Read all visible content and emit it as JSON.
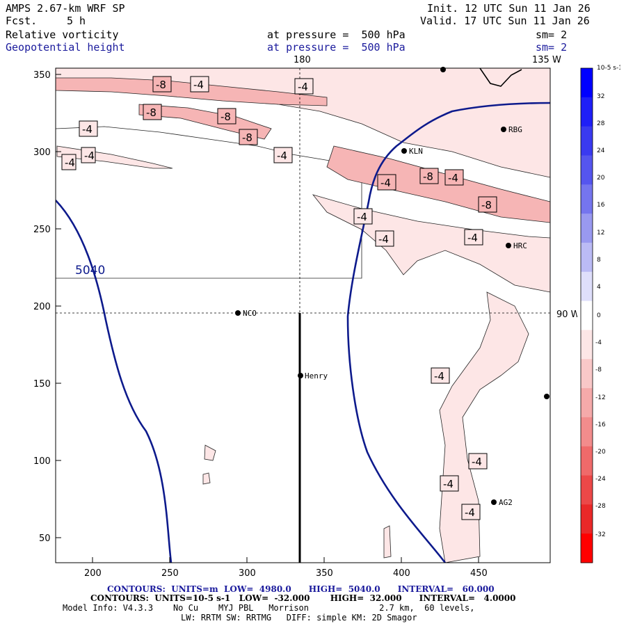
{
  "header": {
    "model": "AMPS 2.67-km WRF SP",
    "fcst_label": "Fcst.",
    "fcst_value": "5 h",
    "init": "Init. 12 UTC Sun 11 Jan 26",
    "valid": "Valid. 17 UTC Sun 11 Jan 26",
    "field1": "Relative vorticity",
    "field1_level": "at pressure =  500 hPa",
    "field1_sm": "sm= 2",
    "field2": "Geopotential height",
    "field2_level": "at pressure =  500 hPa",
    "field2_sm": "sm= 2"
  },
  "map": {
    "x_ticks": [
      "200",
      "250",
      "300",
      "350",
      "400",
      "450"
    ],
    "y_ticks": [
      "350",
      "300",
      "250",
      "200",
      "150",
      "100",
      "50"
    ],
    "lon_labels": {
      "top_180": "180",
      "top_135w": "135 W",
      "right_90w": "90 W"
    },
    "height_label": "5040",
    "stations": [
      {
        "name": "NCO"
      },
      {
        "name": "Henry"
      },
      {
        "name": "KLN"
      },
      {
        "name": "RBG"
      },
      {
        "name": "HRC"
      },
      {
        "name": "AG2"
      },
      {
        "name": ""
      },
      {
        "name": ""
      }
    ],
    "contour_labels": [
      "-8",
      "-4",
      "-4",
      "-8",
      "-8",
      "-8",
      "-4",
      "-4",
      "-4",
      "-4",
      "-4",
      "-8",
      "-4",
      "-8",
      "-4",
      "-4",
      "-4",
      "-4",
      "-4",
      "-4",
      "-4"
    ],
    "colors": {
      "height_contour": "#0d1a8c",
      "vort_light": "#fde6e6",
      "vort_mid": "#f6b5b5"
    }
  },
  "colorbar": {
    "unit": "10-5 s-1",
    "labels": [
      "32",
      "28",
      "24",
      "20",
      "16",
      "12",
      "8",
      "4",
      "0",
      "-4",
      "-8",
      "-12",
      "-16",
      "-20",
      "-24",
      "-28",
      "-32"
    ],
    "colors": [
      "#0000ff",
      "#1f1ff7",
      "#3a3af0",
      "#5555ee",
      "#7575ee",
      "#9999f0",
      "#bbbbf5",
      "#dfdffb",
      "#ffffff",
      "#fde6e6",
      "#f9c8c8",
      "#f5aaaa",
      "#f28c8c",
      "#ef6a6a",
      "#ec4848",
      "#ea2828",
      "#ff0000"
    ]
  },
  "footer": {
    "line1": "CONTOURS:  UNITS=m  LOW=  4980.0      HIGH=  5040.0      INTERVAL=   60.000",
    "line2": "CONTOURS:  UNITS=10-5 s-1   LOW=  -32.000       HIGH=  32.000      INTERVAL=   4.0000",
    "line3": "Model Info: V4.3.3    No Cu    MYJ PBL   Morrison              2.7 km,  60 levels,",
    "line4": "LW: RRTM SW: RRTMG   DIFF: simple KM: 2D Smagor"
  }
}
